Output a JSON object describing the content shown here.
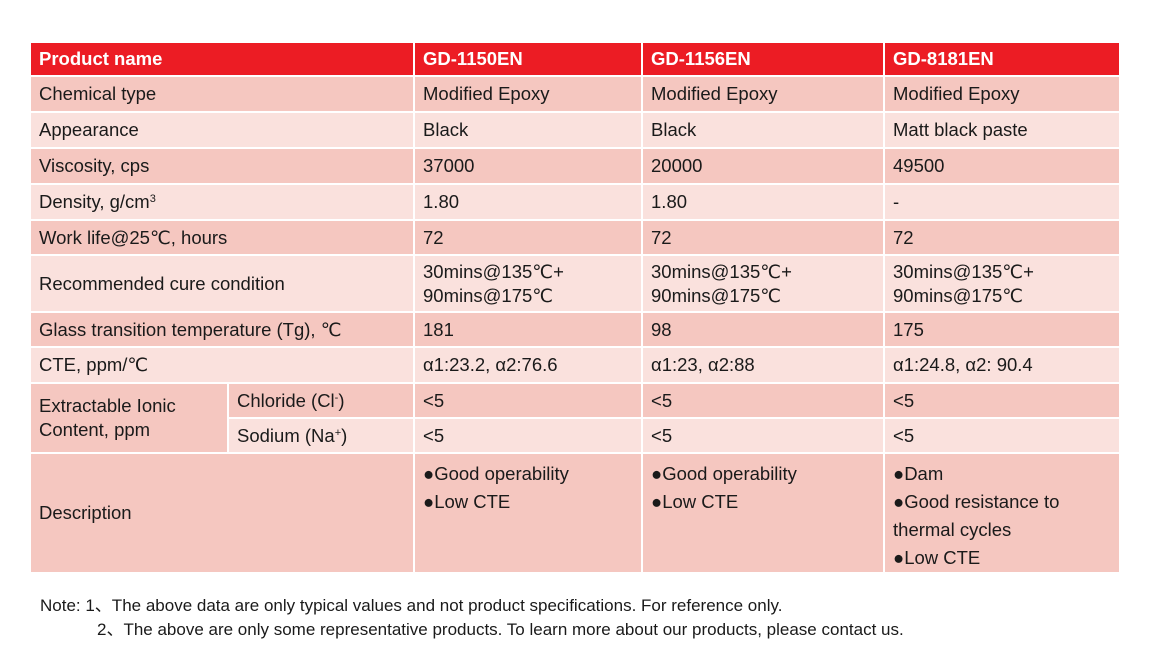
{
  "table": {
    "header": {
      "label": "Product name",
      "products": [
        "GD-1150EN",
        "GD-1156EN",
        "GD-8181EN"
      ]
    },
    "rows": {
      "chemical_type": {
        "label": "Chemical type",
        "values": [
          "Modified Epoxy",
          "Modified Epoxy",
          "Modified Epoxy"
        ]
      },
      "appearance": {
        "label": "Appearance",
        "values": [
          "Black",
          "Black",
          "Matt black paste"
        ]
      },
      "viscosity": {
        "label": "Viscosity, cps",
        "values": [
          "37000",
          "20000",
          "49500"
        ]
      },
      "density": {
        "label": "Density, g/cm",
        "unit_sup": "3",
        "values": [
          "1.80",
          "1.80",
          "-"
        ]
      },
      "work_life": {
        "label": "Work life@25℃, hours",
        "values": [
          "72",
          "72",
          "72"
        ]
      },
      "cure": {
        "label": "Recommended cure condition",
        "values": [
          [
            "30mins@135℃+",
            "90mins@175℃"
          ],
          [
            "30mins@135℃+",
            "90mins@175℃"
          ],
          [
            "30mins@135℃+",
            "90mins@175℃"
          ]
        ]
      },
      "tg": {
        "label": "Glass transition temperature (Tg), ℃",
        "values": [
          "181",
          "98",
          "175"
        ]
      },
      "cte": {
        "label": "CTE, ppm/℃",
        "values": [
          "α1:23.2, α2:76.6",
          "α1:23, α2:88",
          "α1:24.8, α2: 90.4"
        ]
      },
      "ionic": {
        "label_line1": "Extractable Ionic",
        "label_line2": "Content, ppm",
        "chloride": {
          "label": "Chloride (Cl",
          "sup": "-",
          "label_end": ")",
          "values": [
            "<5",
            "<5",
            "<5"
          ]
        },
        "sodium": {
          "label": "Sodium (Na",
          "sup": "+",
          "label_end": ")",
          "values": [
            "<5",
            "<5",
            "<5"
          ]
        }
      },
      "description": {
        "label": "Description",
        "values": [
          [
            "●Good operability",
            "●Low CTE"
          ],
          [
            "●Good operability",
            "●Low CTE"
          ],
          [
            "●Dam",
            "●Good resistance to",
            "thermal cycles",
            "●Low CTE"
          ]
        ]
      }
    }
  },
  "notes": {
    "line1": "Note: 1、The above data are only typical values and not product specifications. For reference only.",
    "line2": "2、The above are only some representative products. To learn more about our products, please contact us."
  },
  "colors": {
    "header_red": "#ec1c24",
    "row_dark": "#f5c7c0",
    "row_light": "#fae1dd"
  }
}
